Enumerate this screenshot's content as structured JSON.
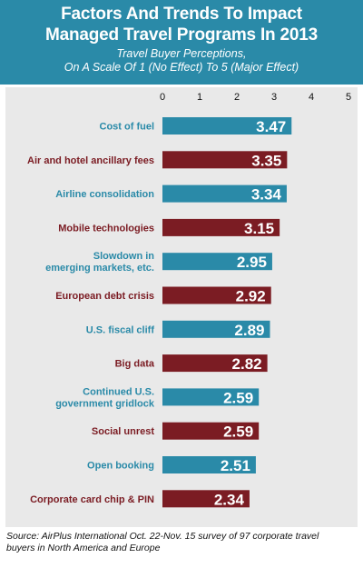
{
  "header": {
    "title_line1": "Factors And Trends To Impact",
    "title_line2": "Managed Travel Programs In 2013",
    "subtitle_line1": "Travel Buyer Perceptions,",
    "subtitle_line2": "On A Scale Of 1 (No Effect) To 5 (Major Effect)"
  },
  "footer": {
    "source_line1": "Source: AirPlus International Oct. 22-Nov. 15 survey of  97 corporate travel",
    "source_line2": "buyers in North America and Europe"
  },
  "colors": {
    "header_bg": "#2a8aa8",
    "teal": "#2a8aa8",
    "maroon": "#7b1c23",
    "panel_bg": "#e9e9e9"
  },
  "chart_data": {
    "type": "bar",
    "orientation": "horizontal",
    "xlim": [
      0,
      5
    ],
    "ticks": [
      "0",
      "1",
      "2",
      "3",
      "4",
      "5"
    ],
    "categories": [
      [
        "Cost of fuel"
      ],
      [
        "Air and hotel ancillary fees"
      ],
      [
        "Airline consolidation"
      ],
      [
        "Mobile technologies"
      ],
      [
        "Slowdown in",
        "emerging markets, etc."
      ],
      [
        "European debt crisis"
      ],
      [
        "U.S. fiscal cliff"
      ],
      [
        "Big data"
      ],
      [
        "Continued U.S.",
        "government gridlock"
      ],
      [
        "Social unrest"
      ],
      [
        "Open booking"
      ],
      [
        "Corporate card chip & PIN"
      ]
    ],
    "values": [
      3.47,
      3.35,
      3.34,
      3.15,
      2.95,
      2.92,
      2.89,
      2.82,
      2.59,
      2.59,
      2.51,
      2.34
    ],
    "value_labels": [
      "3.47",
      "3.35",
      "3.34",
      "3.15",
      "2.95",
      "2.92",
      "2.89",
      "2.82",
      "2.59",
      "2.59",
      "2.51",
      "2.34"
    ],
    "bar_colors": [
      "#2a8aa8",
      "#7b1c23",
      "#2a8aa8",
      "#7b1c23",
      "#2a8aa8",
      "#7b1c23",
      "#2a8aa8",
      "#7b1c23",
      "#2a8aa8",
      "#7b1c23",
      "#2a8aa8",
      "#7b1c23"
    ],
    "grid": false
  }
}
